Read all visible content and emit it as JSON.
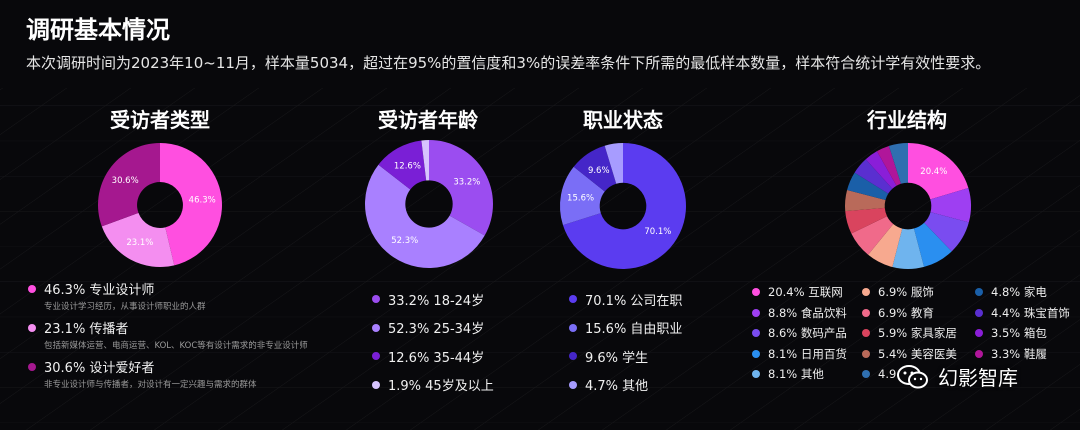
{
  "page": {
    "title": "调研基本情况",
    "subtitle": "本次调研时间为2023年10~11月，样本量5034，超过在95%的置信度和3%的误差率条件下所需的最低样本数量，样本符合统计学有效性要求。"
  },
  "watermark": {
    "text": "幻影智库"
  },
  "chart_data": [
    {
      "type": "pie",
      "title": "受访者类型",
      "hole": 0.37,
      "slices": [
        {
          "value": 46.3,
          "label": "46.3%",
          "legend": "46.3% 专业设计师",
          "desc": "专业设计学习经历，从事设计师职业的人群",
          "color": "#ff4fe0"
        },
        {
          "value": 23.1,
          "label": "23.1%",
          "legend": "23.1% 传播者",
          "desc": "包括新媒体运营、电商运营、KOL、KOC等有设计需求的非专业设计师",
          "color": "#f48ef0"
        },
        {
          "value": 30.6,
          "label": "30.6%",
          "legend": "30.6% 设计爱好者",
          "desc": "非专业设计师与传播者，对设计有一定兴趣与需求的群体",
          "color": "#a5188f"
        }
      ]
    },
    {
      "type": "pie",
      "title": "受访者年龄",
      "hole": 0.37,
      "slices": [
        {
          "value": 33.2,
          "label": "33.2%",
          "legend": "33.2% 18-24岁",
          "color": "#9b4df0"
        },
        {
          "value": 52.3,
          "label": "52.3%",
          "legend": "52.3% 25-34岁",
          "color": "#a980ff"
        },
        {
          "value": 12.6,
          "label": "12.6%",
          "legend": "12.6% 35-44岁",
          "color": "#7a1fd6"
        },
        {
          "value": 1.9,
          "label": "",
          "legend": "1.9% 45岁及以上",
          "color": "#d7c4ff"
        }
      ]
    },
    {
      "type": "pie",
      "title": "职业状态",
      "hole": 0.37,
      "slices": [
        {
          "value": 70.1,
          "label": "70.1%",
          "legend": "70.1% 公司在职",
          "color": "#5b3cf0"
        },
        {
          "value": 15.6,
          "label": "15.6%",
          "legend": "15.6% 自由职业",
          "color": "#7a6ef6"
        },
        {
          "value": 9.6,
          "label": "9.6%",
          "legend": "9.6% 学生",
          "color": "#4526c8"
        },
        {
          "value": 4.7,
          "label": "",
          "legend": "4.7% 其他",
          "color": "#a79cff"
        }
      ]
    },
    {
      "type": "pie",
      "title": "行业结构",
      "hole": 0.37,
      "slices": [
        {
          "value": 20.4,
          "label": "20.4%",
          "legend": "20.4% 互联网",
          "color": "#ff4fe0"
        },
        {
          "value": 8.8,
          "label": "",
          "legend": "8.8% 食品饮料",
          "color": "#9e3ff2"
        },
        {
          "value": 8.6,
          "label": "",
          "legend": "8.6% 数码产品",
          "color": "#7a4cf0"
        },
        {
          "value": 8.1,
          "label": "",
          "legend": "8.1% 日用百货",
          "color": "#2a8ff0"
        },
        {
          "value": 8.1,
          "label": "",
          "legend": "8.1% 其他",
          "color": "#6fb4ee"
        },
        {
          "value": 6.9,
          "label": "",
          "legend": "6.9% 服饰",
          "color": "#f7a98f"
        },
        {
          "value": 6.9,
          "label": "",
          "legend": "6.9% 教育",
          "color": "#f06a8a"
        },
        {
          "value": 5.9,
          "label": "",
          "legend": "5.9% 家具家居",
          "color": "#d9445e"
        },
        {
          "value": 5.4,
          "label": "",
          "legend": "5.4% 美容医美",
          "color": "#b96a5a"
        },
        {
          "value": 4.8,
          "label": "",
          "legend": "4.8% 家电",
          "color": "#1a5fa8"
        },
        {
          "value": 4.4,
          "label": "",
          "legend": "4.4% 珠宝首饰",
          "color": "#5a2fd0"
        },
        {
          "value": 3.5,
          "label": "",
          "legend": "3.5% 箱包",
          "color": "#8a1ed8"
        },
        {
          "value": 3.3,
          "label": "",
          "legend": "3.3% 鞋履",
          "color": "#b0169a"
        },
        {
          "value": 4.9,
          "label": "",
          "legend": "4.9",
          "color": "#2f6fb0"
        }
      ]
    }
  ]
}
